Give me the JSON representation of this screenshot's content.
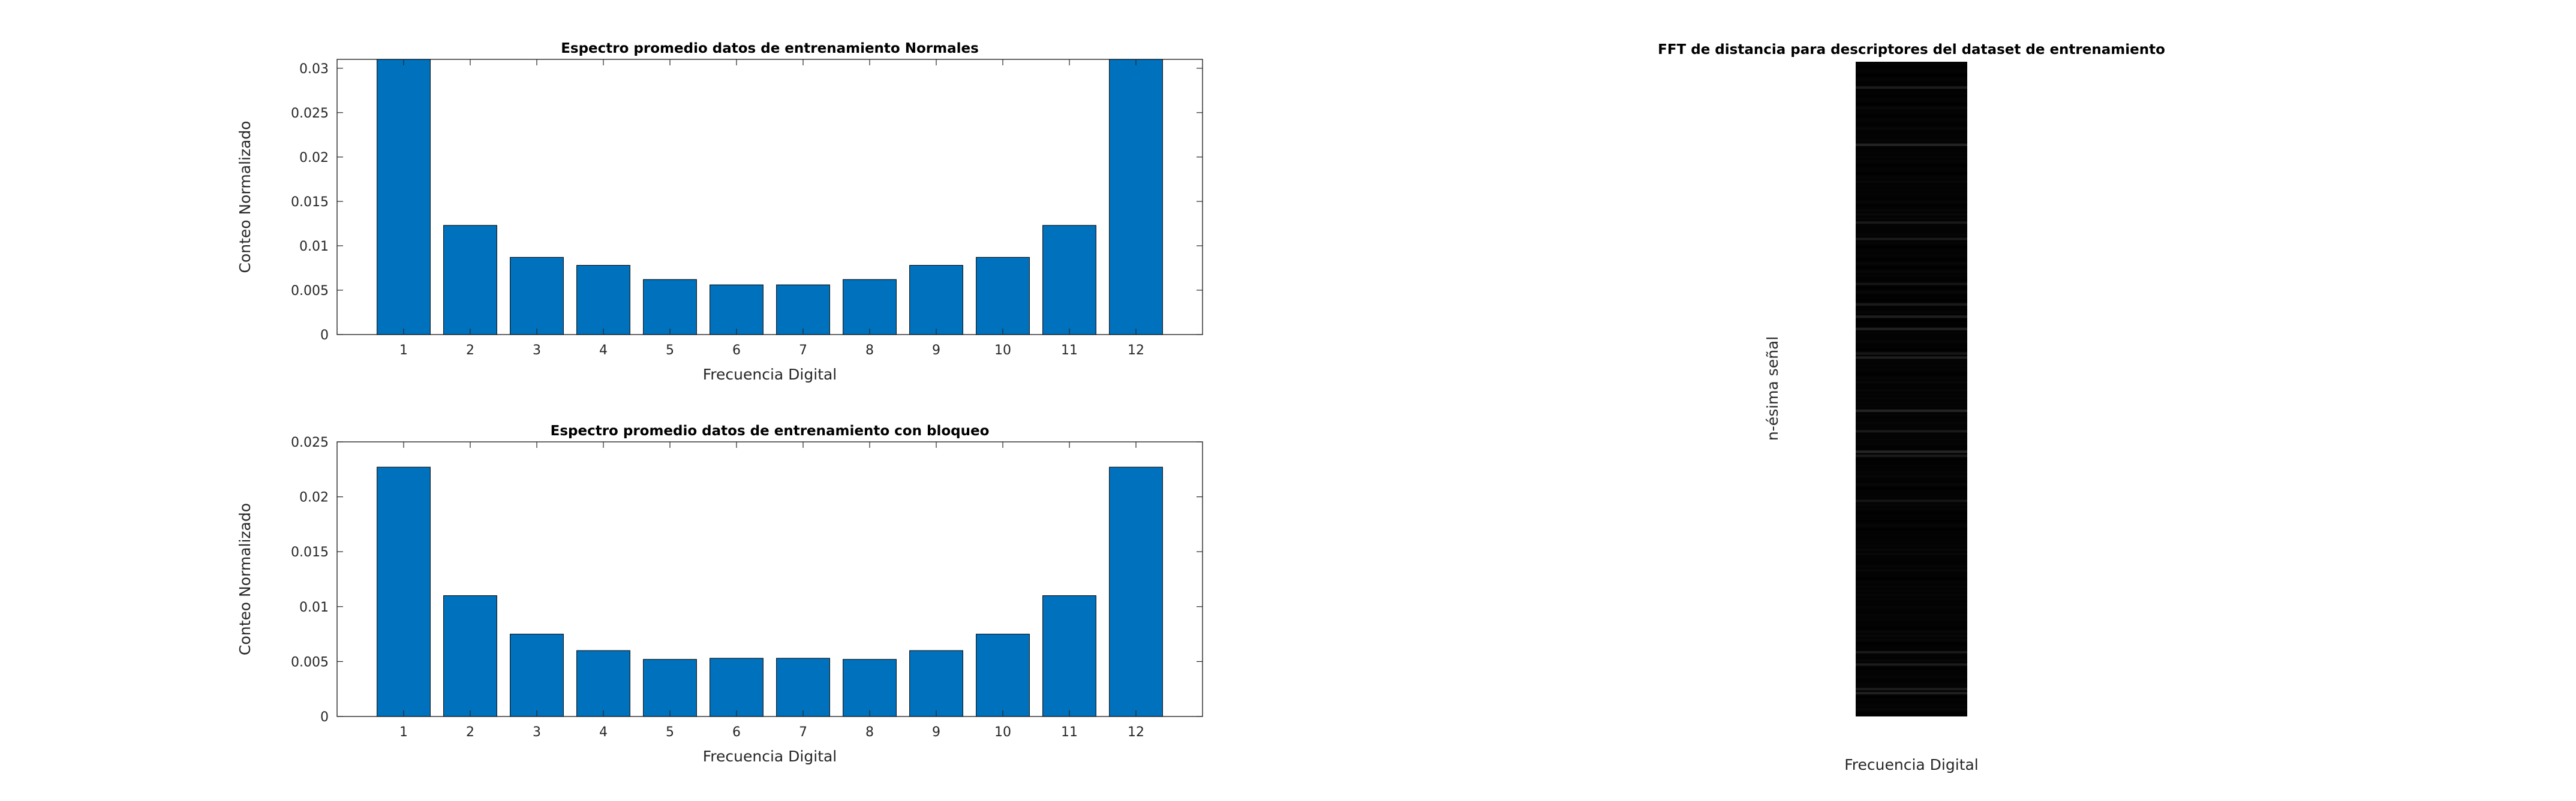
{
  "chart_data": [
    {
      "type": "bar",
      "title": "Espectro promedio datos de entrenamiento Normales",
      "xlabel": "Frecuencia Digital",
      "ylabel": "Conteo Normalizado",
      "categories": [
        "1",
        "2",
        "3",
        "4",
        "5",
        "6",
        "7",
        "8",
        "9",
        "10",
        "11",
        "12"
      ],
      "values": [
        0.0315,
        0.0123,
        0.0087,
        0.0078,
        0.0062,
        0.0056,
        0.0056,
        0.0062,
        0.0078,
        0.0087,
        0.0123,
        0.0315
      ],
      "ylim": [
        0,
        0.031
      ],
      "yticks": [
        "0",
        "0.005",
        "0.01",
        "0.015",
        "0.02",
        "0.025",
        "0.03"
      ],
      "ytick_values": [
        0,
        0.005,
        0.01,
        0.015,
        0.02,
        0.025,
        0.03
      ],
      "bar_color": "#0072BD",
      "grid": false
    },
    {
      "type": "bar",
      "title": "Espectro promedio datos de entrenamiento con bloqueo",
      "xlabel": "Frecuencia Digital",
      "ylabel": "Conteo Normalizado",
      "categories": [
        "1",
        "2",
        "3",
        "4",
        "5",
        "6",
        "7",
        "8",
        "9",
        "10",
        "11",
        "12"
      ],
      "values": [
        0.0227,
        0.011,
        0.0075,
        0.006,
        0.0052,
        0.0053,
        0.0053,
        0.0052,
        0.006,
        0.0075,
        0.011,
        0.0227
      ],
      "ylim": [
        0,
        0.025
      ],
      "yticks": [
        "0",
        "0.005",
        "0.01",
        "0.015",
        "0.02",
        "0.025"
      ],
      "ytick_values": [
        0,
        0.005,
        0.01,
        0.015,
        0.02,
        0.025
      ],
      "bar_color": "#0072BD",
      "grid": false
    },
    {
      "type": "heatmap",
      "title": "FFT de distancia para descriptores del dataset de entrenamiento",
      "xlabel": "Frecuencia Digital",
      "ylabel": "n-ésima señal",
      "colormap": "gray",
      "background_color": "#030303"
    }
  ]
}
